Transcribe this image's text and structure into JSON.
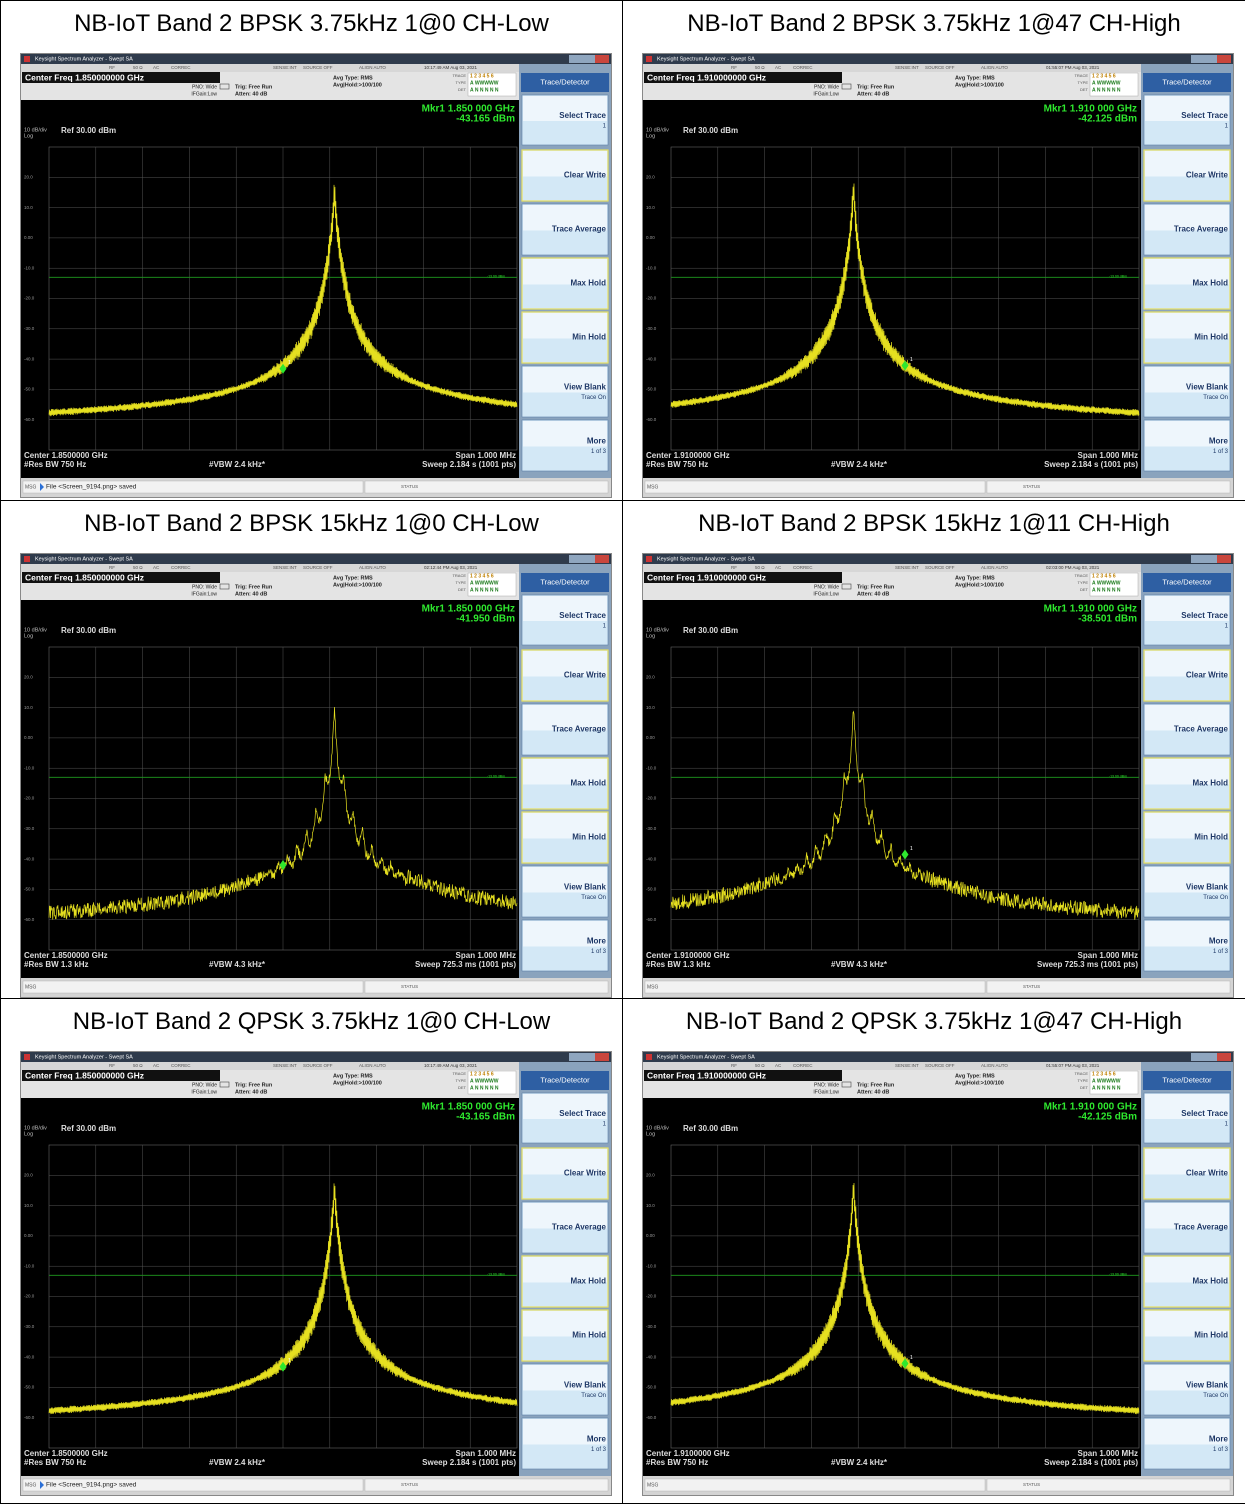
{
  "table": {
    "panels": [
      {
        "title": "NB-IoT Band 2 BPSK 3.75kHz 1@0 CH-Low",
        "center_freq": "Center Freq 1.850000000 GHz",
        "timestamp": "10:17:49 AM Aug 03, 2021",
        "marker_freq": "Mkr1 1.850 000 GHz",
        "marker": {
          "value": -43.165,
          "label": "-43.165 dBm"
        },
        "center": "Center 1.8500000 GHz",
        "res_bw": "#Res BW 750 Hz",
        "vbw": "#VBW 2.4 kHz*",
        "sweep": "Sweep  2.184 s (1001 pts)",
        "span": "Span 1.000 MHz",
        "message": "File <Screen_9194.png> saved"
      },
      {
        "title": "NB-IoT Band 2 BPSK 3.75kHz 1@47 CH-High",
        "center_freq": "Center Freq 1.910000000 GHz",
        "timestamp": "01:55:07 PM Aug 03, 2021",
        "marker_freq": "Mkr1 1.910 000 GHz",
        "marker": {
          "value": -42.125,
          "label": "-42.125 dBm"
        },
        "center": "Center 1.9100000 GHz",
        "res_bw": "#Res BW 750 Hz",
        "vbw": "#VBW 2.4 kHz*",
        "sweep": "Sweep  2.184 s (1001 pts)",
        "span": "Span 1.000 MHz"
      },
      {
        "title": "NB-IoT Band 2 BPSK 15kHz 1@0 CH-Low",
        "center_freq": "Center Freq 1.850000000 GHz",
        "timestamp": "02:12:44 PM Aug 03, 2021",
        "marker_freq": "Mkr1 1.850 000 GHz",
        "marker": {
          "value": -41.95,
          "label": "-41.950 dBm"
        },
        "center": "Center 1.8500000 GHz",
        "res_bw": "#Res BW 1.3 kHz",
        "vbw": "#VBW 4.3 kHz*",
        "sweep": "Sweep  725.3 ms (1001 pts)",
        "span": "Span 1.000 MHz"
      },
      {
        "title": "NB-IoT Band 2 BPSK 15kHz 1@11 CH-High",
        "center_freq": "Center Freq 1.910000000 GHz",
        "timestamp": "02:03:00 PM Aug 03, 2021",
        "marker_freq": "Mkr1 1.910 000 GHz",
        "marker": {
          "value": -38.501,
          "label": "-38.501 dBm"
        },
        "center": "Center 1.9100000 GHz",
        "res_bw": "#Res BW 1.3 kHz",
        "vbw": "#VBW 4.3 kHz*",
        "sweep": "Sweep  725.3 ms (1001 pts)",
        "span": "Span 1.000 MHz"
      },
      {
        "title": "NB-IoT Band 2 QPSK 3.75kHz 1@0 CH-Low",
        "center_freq": "Center Freq 1.850000000 GHz",
        "timestamp": "10:17:49 AM Aug 03, 2021",
        "marker_freq": "Mkr1 1.850 000 GHz",
        "marker": {
          "value": -43.165,
          "label": "-43.165 dBm"
        },
        "center": "Center 1.8500000 GHz",
        "res_bw": "#Res BW 750 Hz",
        "vbw": "#VBW 2.4 kHz*",
        "sweep": "Sweep  2.184 s (1001 pts)",
        "span": "Span 1.000 MHz",
        "message": "File <Screen_9194.png> saved"
      },
      {
        "title": "NB-IoT Band 2 QPSK 3.75kHz 1@47 CH-High",
        "center_freq": "Center Freq 1.910000000 GHz",
        "timestamp": "01:55:07 PM Aug 03, 2021",
        "marker_freq": "Mkr1 1.910 000 GHz",
        "marker": {
          "value": -42.125,
          "label": "-42.125 dBm"
        },
        "center": "Center 1.9100000 GHz",
        "res_bw": "#Res BW 750 Hz",
        "vbw": "#VBW 2.4 kHz*",
        "sweep": "Sweep  2.184 s (1001 pts)",
        "span": "Span 1.000 MHz"
      }
    ]
  },
  "analyzer": {
    "app_title": "Keysight Spectrum Analyzer - Swept SA",
    "status_items": [
      "RF",
      "50 Ω",
      "AC",
      "CORREC",
      "SENSE:INT",
      "SOURCE OFF",
      "ALIGN AUTO"
    ],
    "pno": "PNO: Wide",
    "ifgain": "IFGain:Low",
    "trig": "Trig: Free Run",
    "atten": "Atten: 40 dB",
    "avg_type": "Avg Type: RMS",
    "avg_hold": "Avg|Hold:>100/100",
    "trace_rows": [
      "TRACE",
      "TYPE",
      "DET"
    ],
    "trace_nums": "1 2 3 4 5 6",
    "trace_type": "A WWWWW",
    "trace_det": "A N N N N N",
    "scale": "10 dB/div",
    "log": "Log",
    "ref": "Ref 30.00 dBm",
    "ylim": [
      -70,
      30
    ],
    "yticks": [
      {
        "value": 20,
        "label": "20.0"
      },
      {
        "value": 10,
        "label": "10.0"
      },
      {
        "value": 0,
        "label": "0.00"
      },
      {
        "value": -10,
        "label": "-10.0"
      },
      {
        "value": -20,
        "label": "-20.0"
      },
      {
        "value": -30,
        "label": "-30.0"
      },
      {
        "value": -40,
        "label": "-40.0"
      },
      {
        "value": -50,
        "label": "-50.0"
      },
      {
        "value": -60,
        "label": "-60.0"
      }
    ],
    "limit_line": {
      "value": -13,
      "label": "-13.00 dBm"
    },
    "marker_id": "1",
    "softkeys": {
      "header": "Trace/Detector",
      "buttons": [
        {
          "label": "Select Trace",
          "sub": "1"
        },
        {
          "label": "Clear Write"
        },
        {
          "label": "Trace Average"
        },
        {
          "label": "Max Hold"
        },
        {
          "label": "Min Hold"
        },
        {
          "label": "View Blank",
          "sub": "Trace On"
        },
        {
          "label": "More",
          "sub": "1 of 3"
        }
      ]
    },
    "msg_label": "MSG",
    "status_label": "STATUS"
  }
}
